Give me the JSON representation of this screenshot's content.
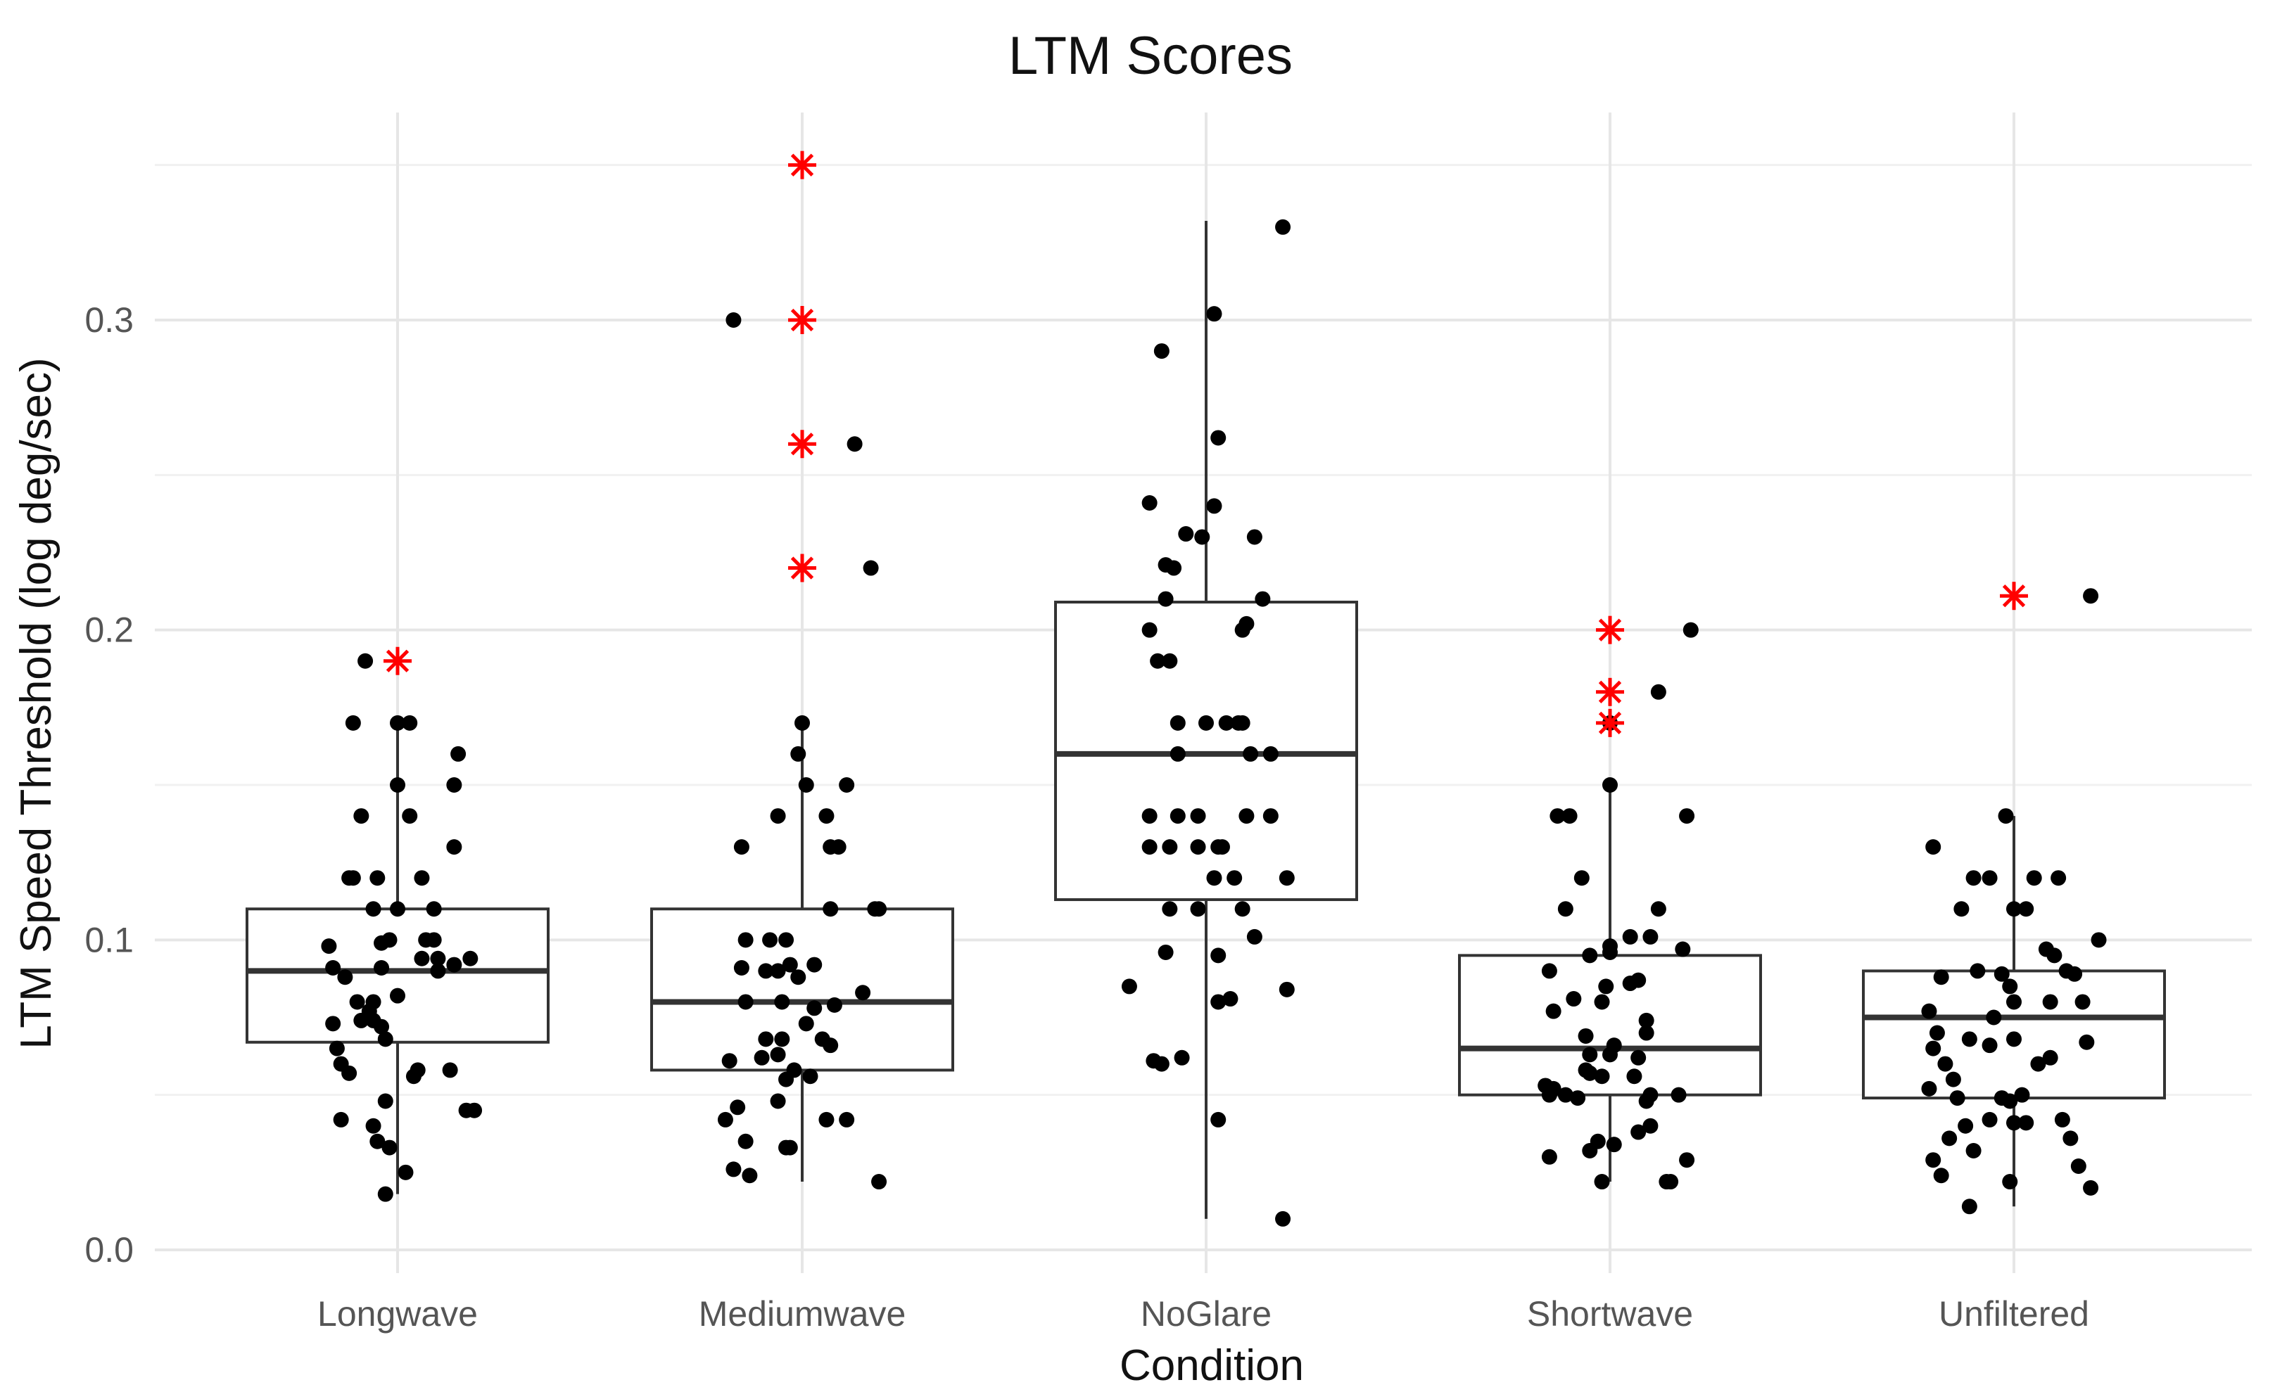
{
  "chart_data": {
    "type": "boxplot",
    "title": "LTM Scores",
    "xlabel": "Condition",
    "ylabel": "LTM Speed Threshold (log deg/sec)",
    "ylim": [
      -0.005,
      0.36
    ],
    "yticks": [
      0.0,
      0.1,
      0.2,
      0.3
    ],
    "ytick_labels": [
      "0.0",
      "0.1",
      "0.2",
      "0.3"
    ],
    "grid": true,
    "legend": "none",
    "colors": {
      "points": "#000000",
      "outliers": "#ff0000",
      "box": "#333333",
      "grid": "#e6e6e6"
    },
    "categories": [
      "Longwave",
      "Mediumwave",
      "NoGlare",
      "Shortwave",
      "Unfiltered"
    ],
    "boxes": [
      {
        "name": "Longwave",
        "q1": 0.067,
        "median": 0.09,
        "q3": 0.11,
        "whisker_low": 0.018,
        "whisker_high": 0.17,
        "outliers": [
          0.19
        ]
      },
      {
        "name": "Mediumwave",
        "q1": 0.058,
        "median": 0.08,
        "q3": 0.11,
        "whisker_low": 0.022,
        "whisker_high": 0.17,
        "outliers": [
          0.35,
          0.3,
          0.26,
          0.22
        ]
      },
      {
        "name": "NoGlare",
        "q1": 0.113,
        "median": 0.16,
        "q3": 0.209,
        "whisker_low": 0.01,
        "whisker_high": 0.332,
        "outliers": []
      },
      {
        "name": "Shortwave",
        "q1": 0.05,
        "median": 0.065,
        "q3": 0.095,
        "whisker_low": 0.022,
        "whisker_high": 0.15,
        "outliers": [
          0.2,
          0.18,
          0.17
        ]
      },
      {
        "name": "Unfiltered",
        "q1": 0.049,
        "median": 0.075,
        "q3": 0.09,
        "whisker_low": 0.014,
        "whisker_high": 0.14,
        "outliers": [
          0.211
        ]
      }
    ],
    "jitter_points": [
      {
        "category": "Longwave",
        "values": [
          [
            -0.08,
            0.19
          ],
          [
            -0.11,
            0.17
          ],
          [
            0.0,
            0.17
          ],
          [
            0.03,
            0.17
          ],
          [
            0.15,
            0.16
          ],
          [
            0.14,
            0.15
          ],
          [
            0.0,
            0.15
          ],
          [
            -0.09,
            0.14
          ],
          [
            0.03,
            0.14
          ],
          [
            0.14,
            0.13
          ],
          [
            -0.12,
            0.12
          ],
          [
            -0.11,
            0.12
          ],
          [
            -0.05,
            0.12
          ],
          [
            0.06,
            0.12
          ],
          [
            -0.06,
            0.11
          ],
          [
            0.0,
            0.11
          ],
          [
            0.09,
            0.11
          ],
          [
            0.09,
            0.1
          ],
          [
            0.07,
            0.1
          ],
          [
            -0.02,
            0.1
          ],
          [
            -0.04,
            0.099
          ],
          [
            -0.17,
            0.098
          ],
          [
            0.18,
            0.094
          ],
          [
            0.14,
            0.092
          ],
          [
            0.1,
            0.094
          ],
          [
            0.06,
            0.094
          ],
          [
            -0.16,
            0.091
          ],
          [
            -0.04,
            0.091
          ],
          [
            0.1,
            0.09
          ],
          [
            -0.13,
            0.088
          ],
          [
            0.0,
            0.082
          ],
          [
            -0.06,
            0.08
          ],
          [
            -0.1,
            0.08
          ],
          [
            -0.07,
            0.077
          ],
          [
            -0.09,
            0.074
          ],
          [
            -0.06,
            0.074
          ],
          [
            -0.16,
            0.073
          ],
          [
            -0.04,
            0.072
          ],
          [
            -0.15,
            0.065
          ],
          [
            -0.03,
            0.068
          ],
          [
            -0.14,
            0.06
          ],
          [
            0.13,
            0.058
          ],
          [
            -0.12,
            0.057
          ],
          [
            0.04,
            0.056
          ],
          [
            0.05,
            0.058
          ],
          [
            -0.03,
            0.048
          ],
          [
            0.17,
            0.045
          ],
          [
            0.19,
            0.045
          ],
          [
            -0.14,
            0.042
          ],
          [
            -0.06,
            0.04
          ],
          [
            -0.05,
            0.035
          ],
          [
            -0.02,
            0.033
          ],
          [
            0.02,
            0.025
          ],
          [
            -0.03,
            0.018
          ]
        ]
      },
      {
        "category": "Mediumwave",
        "values": [
          [
            -0.17,
            0.3
          ],
          [
            0.13,
            0.26
          ],
          [
            0.17,
            0.22
          ],
          [
            0.0,
            0.17
          ],
          [
            -0.01,
            0.16
          ],
          [
            0.11,
            0.15
          ],
          [
            0.01,
            0.15
          ],
          [
            -0.06,
            0.14
          ],
          [
            0.06,
            0.14
          ],
          [
            -0.15,
            0.13
          ],
          [
            0.07,
            0.13
          ],
          [
            0.09,
            0.13
          ],
          [
            0.07,
            0.11
          ],
          [
            0.19,
            0.11
          ],
          [
            0.18,
            0.11
          ],
          [
            -0.14,
            0.1
          ],
          [
            -0.08,
            0.1
          ],
          [
            -0.04,
            0.1
          ],
          [
            -0.03,
            0.092
          ],
          [
            -0.15,
            0.091
          ],
          [
            0.03,
            0.092
          ],
          [
            -0.06,
            0.09
          ],
          [
            -0.09,
            0.09
          ],
          [
            -0.01,
            0.088
          ],
          [
            0.15,
            0.083
          ],
          [
            -0.14,
            0.08
          ],
          [
            -0.05,
            0.08
          ],
          [
            0.03,
            0.078
          ],
          [
            0.08,
            0.079
          ],
          [
            0.01,
            0.073
          ],
          [
            -0.09,
            0.068
          ],
          [
            -0.05,
            0.068
          ],
          [
            0.05,
            0.068
          ],
          [
            0.07,
            0.066
          ],
          [
            -0.1,
            0.062
          ],
          [
            -0.06,
            0.063
          ],
          [
            -0.18,
            0.061
          ],
          [
            -0.02,
            0.058
          ],
          [
            -0.04,
            0.055
          ],
          [
            0.02,
            0.056
          ],
          [
            -0.06,
            0.048
          ],
          [
            -0.16,
            0.046
          ],
          [
            -0.19,
            0.042
          ],
          [
            0.06,
            0.042
          ],
          [
            0.11,
            0.042
          ],
          [
            -0.14,
            0.035
          ],
          [
            -0.04,
            0.033
          ],
          [
            -0.03,
            0.033
          ],
          [
            -0.17,
            0.026
          ],
          [
            -0.13,
            0.024
          ],
          [
            0.19,
            0.022
          ]
        ]
      },
      {
        "category": "NoGlare",
        "values": [
          [
            0.19,
            0.33
          ],
          [
            0.02,
            0.302
          ],
          [
            -0.11,
            0.29
          ],
          [
            0.03,
            0.262
          ],
          [
            -0.14,
            0.241
          ],
          [
            0.02,
            0.24
          ],
          [
            -0.05,
            0.231
          ],
          [
            0.12,
            0.23
          ],
          [
            -0.01,
            0.23
          ],
          [
            -0.1,
            0.221
          ],
          [
            -0.08,
            0.22
          ],
          [
            -0.1,
            0.21
          ],
          [
            0.14,
            0.21
          ],
          [
            -0.14,
            0.2
          ],
          [
            0.09,
            0.2
          ],
          [
            0.1,
            0.202
          ],
          [
            -0.12,
            0.19
          ],
          [
            -0.09,
            0.19
          ],
          [
            0.0,
            0.17
          ],
          [
            0.08,
            0.17
          ],
          [
            -0.07,
            0.17
          ],
          [
            0.05,
            0.17
          ],
          [
            0.09,
            0.17
          ],
          [
            0.16,
            0.16
          ],
          [
            -0.07,
            0.16
          ],
          [
            0.11,
            0.16
          ],
          [
            -0.07,
            0.14
          ],
          [
            -0.14,
            0.14
          ],
          [
            -0.02,
            0.14
          ],
          [
            0.16,
            0.14
          ],
          [
            0.1,
            0.14
          ],
          [
            0.03,
            0.13
          ],
          [
            -0.14,
            0.13
          ],
          [
            -0.09,
            0.13
          ],
          [
            0.04,
            0.13
          ],
          [
            -0.02,
            0.13
          ],
          [
            0.02,
            0.12
          ],
          [
            0.07,
            0.12
          ],
          [
            0.2,
            0.12
          ],
          [
            -0.02,
            0.11
          ],
          [
            -0.09,
            0.11
          ],
          [
            0.09,
            0.11
          ],
          [
            0.12,
            0.101
          ],
          [
            -0.1,
            0.096
          ],
          [
            0.03,
            0.095
          ],
          [
            -0.19,
            0.085
          ],
          [
            0.2,
            0.084
          ],
          [
            0.06,
            0.081
          ],
          [
            0.03,
            0.08
          ],
          [
            -0.11,
            0.06
          ],
          [
            -0.13,
            0.061
          ],
          [
            -0.06,
            0.062
          ],
          [
            0.03,
            0.042
          ],
          [
            0.19,
            0.01
          ]
        ]
      },
      {
        "category": "Shortwave",
        "values": [
          [
            0.2,
            0.2
          ],
          [
            0.12,
            0.18
          ],
          [
            0.0,
            0.17
          ],
          [
            0.0,
            0.15
          ],
          [
            -0.13,
            0.14
          ],
          [
            -0.1,
            0.14
          ],
          [
            0.19,
            0.14
          ],
          [
            -0.07,
            0.12
          ],
          [
            -0.11,
            0.11
          ],
          [
            0.12,
            0.11
          ],
          [
            0.05,
            0.101
          ],
          [
            0.1,
            0.101
          ],
          [
            0.0,
            0.098
          ],
          [
            0.0,
            0.096
          ],
          [
            0.18,
            0.097
          ],
          [
            -0.05,
            0.095
          ],
          [
            -0.15,
            0.09
          ],
          [
            0.07,
            0.087
          ],
          [
            0.05,
            0.086
          ],
          [
            -0.01,
            0.085
          ],
          [
            -0.09,
            0.081
          ],
          [
            -0.02,
            0.08
          ],
          [
            -0.14,
            0.077
          ],
          [
            0.09,
            0.074
          ],
          [
            -0.06,
            0.069
          ],
          [
            0.09,
            0.07
          ],
          [
            0.01,
            0.066
          ],
          [
            0.0,
            0.063
          ],
          [
            -0.05,
            0.063
          ],
          [
            0.07,
            0.062
          ],
          [
            -0.06,
            0.058
          ],
          [
            -0.05,
            0.057
          ],
          [
            -0.02,
            0.056
          ],
          [
            0.06,
            0.056
          ],
          [
            -0.16,
            0.053
          ],
          [
            -0.14,
            0.052
          ],
          [
            -0.15,
            0.05
          ],
          [
            -0.08,
            0.049
          ],
          [
            0.09,
            0.048
          ],
          [
            0.17,
            0.05
          ],
          [
            -0.11,
            0.05
          ],
          [
            0.1,
            0.05
          ],
          [
            0.1,
            0.04
          ],
          [
            0.07,
            0.038
          ],
          [
            -0.03,
            0.035
          ],
          [
            0.01,
            0.034
          ],
          [
            -0.05,
            0.032
          ],
          [
            -0.15,
            0.03
          ],
          [
            0.19,
            0.029
          ],
          [
            -0.02,
            0.022
          ],
          [
            0.14,
            0.022
          ],
          [
            0.15,
            0.022
          ]
        ]
      },
      {
        "category": "Unfiltered",
        "values": [
          [
            0.19,
            0.211
          ],
          [
            -0.02,
            0.14
          ],
          [
            -0.2,
            0.13
          ],
          [
            -0.1,
            0.12
          ],
          [
            -0.06,
            0.12
          ],
          [
            0.05,
            0.12
          ],
          [
            0.11,
            0.12
          ],
          [
            0.0,
            0.11
          ],
          [
            0.03,
            0.11
          ],
          [
            -0.13,
            0.11
          ],
          [
            0.21,
            0.1
          ],
          [
            0.08,
            0.097
          ],
          [
            0.1,
            0.095
          ],
          [
            -0.09,
            0.09
          ],
          [
            -0.03,
            0.089
          ],
          [
            0.15,
            0.089
          ],
          [
            0.13,
            0.09
          ],
          [
            -0.18,
            0.088
          ],
          [
            -0.01,
            0.085
          ],
          [
            0.09,
            0.08
          ],
          [
            0.17,
            0.08
          ],
          [
            0.0,
            0.08
          ],
          [
            -0.21,
            0.077
          ],
          [
            -0.05,
            0.075
          ],
          [
            -0.19,
            0.07
          ],
          [
            0.0,
            0.068
          ],
          [
            -0.11,
            0.068
          ],
          [
            0.18,
            0.067
          ],
          [
            -0.06,
            0.066
          ],
          [
            -0.2,
            0.065
          ],
          [
            0.09,
            0.062
          ],
          [
            -0.17,
            0.06
          ],
          [
            0.06,
            0.06
          ],
          [
            -0.15,
            0.055
          ],
          [
            -0.21,
            0.052
          ],
          [
            0.02,
            0.05
          ],
          [
            -0.03,
            0.049
          ],
          [
            -0.14,
            0.049
          ],
          [
            -0.01,
            0.048
          ],
          [
            -0.06,
            0.042
          ],
          [
            0.0,
            0.041
          ],
          [
            0.03,
            0.041
          ],
          [
            0.12,
            0.042
          ],
          [
            -0.12,
            0.04
          ],
          [
            -0.16,
            0.036
          ],
          [
            0.14,
            0.036
          ],
          [
            -0.1,
            0.032
          ],
          [
            -0.2,
            0.029
          ],
          [
            0.16,
            0.027
          ],
          [
            -0.18,
            0.024
          ],
          [
            -0.01,
            0.022
          ],
          [
            0.19,
            0.02
          ],
          [
            -0.11,
            0.014
          ]
        ]
      }
    ]
  }
}
